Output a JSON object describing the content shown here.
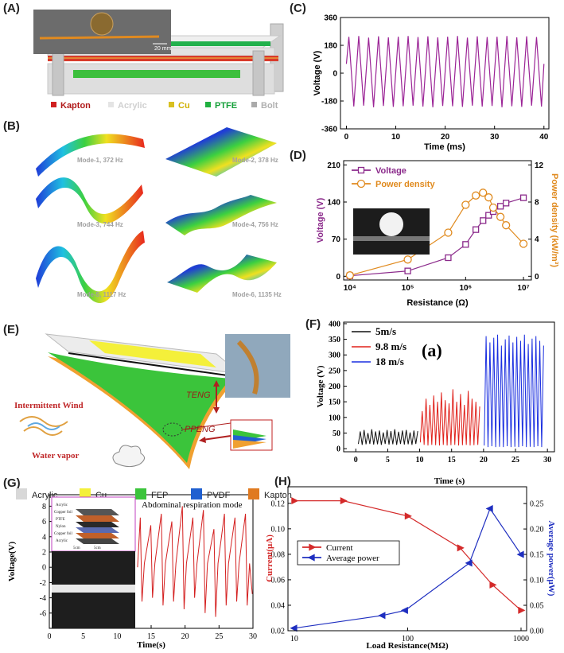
{
  "chart_data": [
    {
      "type": "line",
      "panel": "(C)",
      "x_label": "Time (ms)",
      "y_label": "Voltage (V)",
      "x": [
        0,
        0.5,
        1.5,
        2.5,
        3.5,
        4.5,
        5.5,
        6.5,
        7.5,
        8.5,
        9.5,
        10.5,
        11.5,
        12.5,
        13.5,
        14.5,
        15.5,
        16.5,
        17.5,
        18.5,
        19.5,
        20.5,
        21.5,
        22.5,
        23.5,
        24.5,
        25.5,
        26.5,
        27.5,
        28.5,
        29.5,
        30.5,
        31.5,
        32.5,
        33.5,
        34.5,
        35.5,
        36.5,
        37.5,
        38.5,
        39.5,
        40
      ],
      "series": [
        {
          "color": "#9b2496",
          "values": [
            60,
            235,
            -215,
            240,
            -210,
            230,
            -220,
            238,
            -212,
            232,
            -218,
            236,
            -214,
            240,
            -210,
            234,
            -216,
            238,
            -220,
            232,
            -212,
            236,
            -214,
            240,
            -218,
            230,
            -210,
            238,
            -216,
            234,
            -212,
            236,
            -220,
            240,
            -214,
            232,
            -218,
            238,
            -210,
            234,
            -216,
            60
          ]
        }
      ],
      "xlim": [
        -1.2,
        41
      ],
      "xticks": [
        0,
        10,
        20,
        30,
        40
      ],
      "ylim": [
        -360,
        360
      ],
      "yticks": [
        -360,
        -180,
        0,
        180,
        360
      ]
    },
    {
      "type": "line",
      "panel": "(D)",
      "x_label": "Resistance (Ω)",
      "y_label": "Voltage (V)",
      "y2_label": "Power density (kW/m³)",
      "xlog": true,
      "x": [
        10000,
        100000,
        500000,
        1000000,
        1500000,
        2000000,
        2500000,
        3000000,
        4000000,
        5000000,
        10000000
      ],
      "series": [
        {
          "name": "Voltage",
          "color": "#8b2a8b",
          "marker": "square",
          "values": [
            1,
            10,
            35,
            60,
            88,
            105,
            115,
            122,
            132,
            138,
            148
          ]
        },
        {
          "name": "Power density",
          "color": "#e08a1e",
          "marker": "circle",
          "axis": "y2",
          "values": [
            0.1,
            1.8,
            4.7,
            7.7,
            8.7,
            9.0,
            8.5,
            7.4,
            6.4,
            5.5,
            3.5
          ]
        }
      ],
      "legend": "upper left",
      "xlim": [
        7800,
        13700000
      ],
      "xticks": [
        {
          "value": 10000,
          "label": "10⁴"
        },
        {
          "value": 100000,
          "label": "10⁵"
        },
        {
          "value": 1000000,
          "label": "10⁶"
        },
        {
          "value": 10000000,
          "label": "10⁷"
        }
      ],
      "ylim": [
        -7,
        218
      ],
      "yticks": [
        0,
        70,
        140,
        210
      ],
      "y2lim": [
        -0.4,
        12.457
      ],
      "y2ticks": [
        0,
        4,
        8,
        12
      ]
    },
    {
      "type": "line",
      "panel": "(F)",
      "annotation": "(a)",
      "x_label": "Time (s)",
      "y_label": "Voltage (V)",
      "series": [
        {
          "name": "5m/s",
          "color": "#111111",
          "x": [
            0.4,
            0.7,
            1.0,
            1.3,
            1.6,
            1.9,
            2.2,
            2.5,
            2.8,
            3.1,
            3.4,
            3.7,
            4.0,
            4.3,
            4.6,
            4.9,
            5.2,
            5.5,
            5.8,
            6.1,
            6.4,
            6.7,
            7.0,
            7.3,
            7.6,
            7.9,
            8.2,
            8.5,
            8.8,
            9.1,
            9.4,
            9.7
          ],
          "values": [
            15,
            55,
            12,
            60,
            14,
            50,
            15,
            62,
            13,
            55,
            14,
            58,
            12,
            52,
            15,
            60,
            13,
            56,
            14,
            62,
            12,
            54,
            15,
            58,
            13,
            60,
            14,
            52,
            12,
            58,
            15,
            56
          ]
        },
        {
          "name": "9.8 m/s",
          "color": "#e0201a",
          "x": [
            10.1,
            10.4,
            10.7,
            11.0,
            11.3,
            11.6,
            11.9,
            12.2,
            12.5,
            12.8,
            13.1,
            13.4,
            13.7,
            14.0,
            14.3,
            14.6,
            14.9,
            15.2,
            15.5,
            15.8,
            16.1,
            16.4,
            16.7,
            17.0,
            17.3,
            17.6,
            17.9,
            18.2,
            18.5,
            18.8,
            19.1,
            19.4
          ],
          "values": [
            20,
            120,
            12,
            160,
            10,
            140,
            12,
            170,
            11,
            150,
            10,
            180,
            12,
            155,
            10,
            145,
            11,
            190,
            12,
            150,
            10,
            175,
            11,
            140,
            12,
            185,
            10,
            160,
            11,
            150,
            12,
            135
          ]
        },
        {
          "name": "18 m/s",
          "color": "#1a2ee0",
          "x": [
            20.1,
            20.4,
            20.7,
            21.0,
            21.3,
            21.6,
            21.9,
            22.2,
            22.5,
            22.8,
            23.1,
            23.4,
            23.7,
            24.0,
            24.3,
            24.6,
            24.9,
            25.2,
            25.5,
            25.8,
            26.1,
            26.4,
            26.7,
            27.0,
            27.3,
            27.6,
            27.9,
            28.2,
            28.5,
            28.8,
            29.1,
            29.4
          ],
          "values": [
            10,
            360,
            5,
            340,
            8,
            355,
            5,
            365,
            6,
            330,
            5,
            350,
            8,
            362,
            5,
            340,
            6,
            358,
            5,
            345,
            8,
            365,
            5,
            335,
            6,
            352,
            5,
            360,
            8,
            345,
            5,
            330
          ]
        }
      ],
      "legend": "upper left",
      "xlim": [
        -1.9,
        31.1
      ],
      "xticks": [
        0,
        5,
        10,
        15,
        20,
        25,
        30
      ],
      "ylim": [
        -10,
        405
      ],
      "yticks": [
        0,
        50,
        100,
        150,
        200,
        250,
        300,
        350,
        400
      ]
    },
    {
      "type": "line",
      "panel": "(G)",
      "annotation": "Abdominal respiration mode",
      "x_label": "Time(s)",
      "y_label": "Voltage(V)",
      "inset_labels": [
        "Acrylic",
        "Copper foil",
        "PTFE",
        "Nylon",
        "Copper foil",
        "Acrylic",
        "5cm",
        "5cm"
      ],
      "x": [
        13.0,
        13.4,
        13.65,
        14.0,
        14.95,
        15.2,
        15.55,
        16.5,
        16.75,
        17.1,
        18.05,
        18.3,
        18.65,
        19.6,
        19.85,
        20.2,
        21.15,
        21.4,
        21.75,
        22.7,
        22.95,
        23.3,
        24.25,
        24.5,
        24.85,
        25.8,
        26.05,
        26.4,
        27.35,
        27.6,
        27.95,
        28.9,
        29.15,
        29.5,
        29.9
      ],
      "series": [
        {
          "color": "#d42020",
          "values": [
            0,
            6.5,
            -4.5,
            0.5,
            5.5,
            -4,
            0.5,
            7,
            -5,
            0.5,
            6,
            -4.5,
            0.5,
            8,
            -5.5,
            0.5,
            6.5,
            -4,
            0.5,
            7.5,
            -6,
            0.5,
            5,
            -6.5,
            0.5,
            7,
            -5,
            0.5,
            6.5,
            -4.5,
            0.5,
            7,
            -5,
            0.5,
            -3.5
          ]
        }
      ],
      "xlim": [
        0,
        30
      ],
      "xticks": [
        0,
        5,
        10,
        15,
        20,
        25,
        30
      ],
      "ylim": [
        -8,
        9.5
      ],
      "yticks": [
        -6,
        -4,
        -2,
        0,
        2,
        4,
        6,
        8
      ]
    },
    {
      "type": "line",
      "panel": "(H)",
      "x_label": "Load Resistance(MΩ)",
      "y_label": "Current(μA)",
      "y2_label": "Average power(μW)",
      "xlog": true,
      "series": [
        {
          "name": "Current",
          "color": "#d42a2a",
          "marker": "triangle-right",
          "x": [
            10,
            27,
            100,
            290,
            560,
            1000
          ],
          "values": [
            0.122,
            0.122,
            0.11,
            0.085,
            0.056,
            0.036
          ]
        },
        {
          "name": "Average power",
          "color": "#1f2fc0",
          "marker": "triangle-left",
          "axis": "y2",
          "x": [
            10,
            60,
            95,
            350,
            533,
            1000
          ],
          "values": [
            0.005,
            0.03,
            0.04,
            0.133,
            0.24,
            0.15
          ]
        }
      ],
      "legend": "center left",
      "xlim": [
        8.8,
        1120
      ],
      "xticks": [
        10,
        100,
        1000
      ],
      "ylim": [
        0.02,
        0.133
      ],
      "yticks": [
        0.02,
        0.04,
        0.06,
        0.08,
        {
          "value": 0.1,
          "label": "0.10"
        },
        0.12
      ],
      "y2lim": [
        0,
        0.283
      ],
      "y2ticks": [
        {
          "value": 0,
          "label": "0.00"
        },
        {
          "value": 0.05,
          "label": "0.05"
        },
        {
          "value": 0.1,
          "label": "0.10"
        },
        {
          "value": 0.15,
          "label": "0.15"
        },
        {
          "value": 0.2,
          "label": "0.20"
        },
        {
          "value": 0.25,
          "label": "0.25"
        }
      ]
    }
  ],
  "illustrations": {
    "A": {
      "panel": "(A)",
      "scale_bar": "20 mm",
      "legend": [
        "Kapton",
        "Acrylic",
        "Cu",
        "PTFE",
        "Bolt"
      ]
    },
    "B": {
      "panel": "(B)",
      "modes": [
        "Mode-1, 372 Hz",
        "Mode-2, 378 Hz",
        "Mode-3, 744 Hz",
        "Mode-4, 756 Hz",
        "Mode-5, 1117 Hz",
        "Mode-6, 1135 Hz"
      ]
    },
    "E": {
      "panel": "(E)",
      "labels": [
        "Intermittent Wind",
        "Water vapor",
        "TENG",
        "PPENG"
      ],
      "legend": [
        "Acrylic",
        "Cu",
        "FEP",
        "PVDF",
        "Kapton"
      ]
    }
  }
}
